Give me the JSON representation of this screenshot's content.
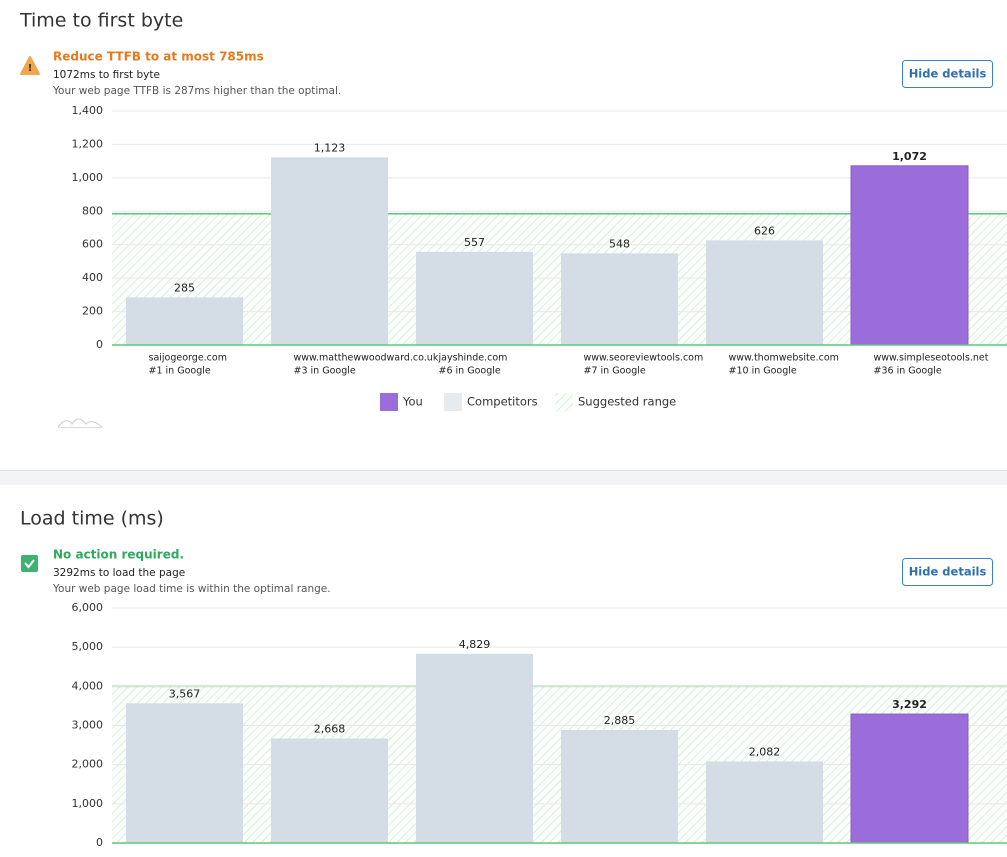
{
  "sections": [
    {
      "title": "Time to first byte",
      "status": "Reduce TTFB to at most 785ms",
      "detail": "1072ms to first byte",
      "note": "Your web page TTFB is 287ms higher than the optimal.",
      "button": "Hide details"
    },
    {
      "title": "Load time (ms)",
      "status": "No action required.",
      "detail": "3292ms to load the page",
      "note": "Your web page load time is within the optimal range.",
      "button": "Hide details"
    }
  ],
  "chart_data": [
    {
      "type": "bar",
      "categories": [
        "saijogeorge.com",
        "www.matthewwoodward.co.uk",
        "jayshinde.com",
        "www.seoreviewtools.com",
        "www.thomwebsite.com",
        "www.simpleseotools.net"
      ],
      "ranks": [
        "#1 in Google",
        "#3 in Google",
        "#6 in Google",
        "#7 in Google",
        "#10 in Google",
        "#36 in Google"
      ],
      "values": [
        285,
        1123,
        557,
        548,
        626,
        1072
      ],
      "value_labels": [
        "285",
        "1,123",
        "557",
        "548",
        "626",
        "1,072"
      ],
      "colors": [
        "#d4dce5",
        "#d4dce5",
        "#d4dce5",
        "#d4dce5",
        "#d4dce5",
        "#9b6ddb"
      ],
      "suggested_range": [
        0,
        785
      ],
      "ylim": [
        0,
        1400
      ],
      "yticks": [
        0,
        200,
        400,
        600,
        800,
        {
          "value": 1000,
          "label": "1,000"
        },
        {
          "value": 1200,
          "label": "1,200"
        },
        {
          "value": 1400,
          "label": "1,400"
        }
      ],
      "grid": true,
      "legend": [
        {
          "name": "You",
          "color": "#9b6ddb"
        },
        {
          "name": "Competitors",
          "color": "#e6ebf0"
        },
        {
          "name": "Suggested range"
        }
      ]
    },
    {
      "type": "bar",
      "categories": [
        null,
        null,
        null,
        null,
        null,
        null
      ],
      "values": [
        3567,
        2668,
        4829,
        2885,
        2082,
        3292
      ],
      "value_labels": [
        "3,567",
        "2,668",
        "4,829",
        "2,885",
        "2,082",
        "3,292"
      ],
      "colors": [
        "#d4dce5",
        "#d4dce5",
        "#d4dce5",
        "#d4dce5",
        "#d4dce5",
        "#9b6ddb"
      ],
      "suggested_range": [
        0,
        4000
      ],
      "ylim": [
        0,
        6000
      ],
      "yticks": [
        0,
        {
          "value": 1000,
          "label": "1,000"
        },
        {
          "value": 2000,
          "label": "2,000"
        },
        {
          "value": 3000,
          "label": "3,000"
        },
        {
          "value": 4000,
          "label": "4,000"
        },
        {
          "value": 5000,
          "label": "5,000"
        },
        {
          "value": 6000,
          "label": "6,000"
        }
      ],
      "grid": true
    }
  ]
}
